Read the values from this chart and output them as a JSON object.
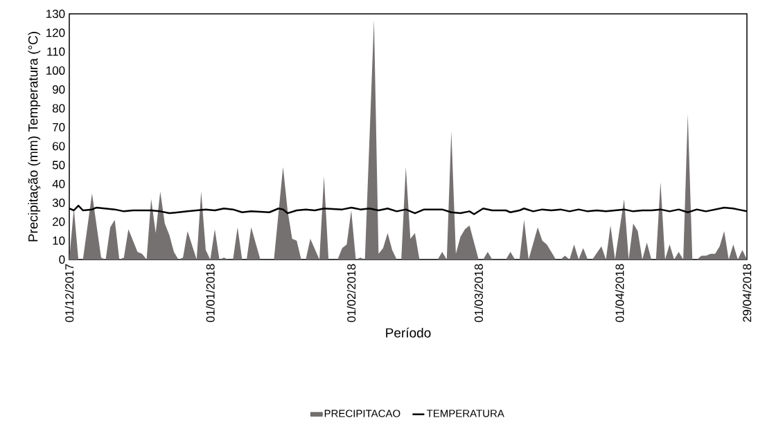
{
  "chart_data": {
    "type": "area",
    "xlabel": "Período",
    "ylabel": "Precipitação (mm) Temperatura (°C)",
    "xlim": [
      "2017-12-01",
      "2018-04-29"
    ],
    "xticks": [
      {
        "value": "2017-12-01",
        "label": "01/12/2017"
      },
      {
        "value": "2018-01-01",
        "label": "01/01/2018"
      },
      {
        "value": "2018-02-01",
        "label": "01/02/2018"
      },
      {
        "value": "2018-03-01",
        "label": "01/03/2018"
      },
      {
        "value": "2018-04-01",
        "label": "01/04/2018"
      },
      {
        "value": "2018-04-29",
        "label": "29/04/2018"
      }
    ],
    "ylim": [
      0,
      130
    ],
    "yticks": [
      0,
      10,
      20,
      30,
      40,
      50,
      60,
      70,
      80,
      90,
      100,
      110,
      120,
      130
    ],
    "legend": "bottom",
    "series": [
      {
        "name": "PRECIPITACAO",
        "color": "#767171",
        "x": [
          "2017-12-01",
          "2017-12-02",
          "2017-12-03",
          "2017-12-04",
          "2017-12-06",
          "2017-12-08",
          "2017-12-09",
          "2017-12-10",
          "2017-12-11",
          "2017-12-12",
          "2017-12-13",
          "2017-12-14",
          "2017-12-16",
          "2017-12-17",
          "2017-12-18",
          "2017-12-19",
          "2017-12-20",
          "2017-12-21",
          "2017-12-22",
          "2017-12-23",
          "2017-12-24",
          "2017-12-25",
          "2017-12-26",
          "2017-12-27",
          "2017-12-29",
          "2017-12-30",
          "2017-12-31",
          "2018-01-01",
          "2018-01-02",
          "2018-01-03",
          "2018-01-04",
          "2018-01-05",
          "2018-01-06",
          "2018-01-07",
          "2018-01-08",
          "2018-01-09",
          "2018-01-10",
          "2018-01-12",
          "2018-01-15",
          "2018-01-17",
          "2018-01-18",
          "2018-01-19",
          "2018-01-20",
          "2018-01-21",
          "2018-01-22",
          "2018-01-23",
          "2018-01-25",
          "2018-01-26",
          "2018-01-27",
          "2018-01-29",
          "2018-01-30",
          "2018-01-31",
          "2018-02-01",
          "2018-02-02",
          "2018-02-03",
          "2018-02-04",
          "2018-02-06",
          "2018-02-07",
          "2018-02-08",
          "2018-02-09",
          "2018-02-10",
          "2018-02-11",
          "2018-02-12",
          "2018-02-13",
          "2018-02-14",
          "2018-02-15",
          "2018-02-16",
          "2018-02-20",
          "2018-02-21",
          "2018-02-22",
          "2018-02-23",
          "2018-02-24",
          "2018-02-25",
          "2018-02-26",
          "2018-02-27",
          "2018-03-01",
          "2018-03-02",
          "2018-03-03",
          "2018-03-04",
          "2018-03-07",
          "2018-03-08",
          "2018-03-09",
          "2018-03-10",
          "2018-03-11",
          "2018-03-12",
          "2018-03-14",
          "2018-03-15",
          "2018-03-16",
          "2018-03-18",
          "2018-03-19",
          "2018-03-20",
          "2018-03-21",
          "2018-03-22",
          "2018-03-23",
          "2018-03-24",
          "2018-03-25",
          "2018-03-26",
          "2018-03-28",
          "2018-03-29",
          "2018-03-30",
          "2018-03-31",
          "2018-04-02",
          "2018-04-03",
          "2018-04-04",
          "2018-04-05",
          "2018-04-06",
          "2018-04-07",
          "2018-04-08",
          "2018-04-09",
          "2018-04-10",
          "2018-04-11",
          "2018-04-12",
          "2018-04-13",
          "2018-04-14",
          "2018-04-15",
          "2018-04-16",
          "2018-04-17",
          "2018-04-18",
          "2018-04-19",
          "2018-04-20",
          "2018-04-21",
          "2018-04-22",
          "2018-04-23",
          "2018-04-24",
          "2018-04-25",
          "2018-04-26",
          "2018-04-27",
          "2018-04-28",
          "2018-04-29"
        ],
        "values": [
          0,
          27,
          0,
          0,
          35,
          1,
          0,
          17,
          21,
          0,
          1,
          16,
          4,
          3,
          0,
          32,
          14,
          36,
          19,
          13,
          4,
          0,
          1,
          15,
          0,
          36,
          5,
          0,
          16,
          0,
          1,
          0,
          0,
          17,
          0,
          0,
          17,
          0,
          0,
          49,
          26,
          11,
          10,
          0,
          0,
          11,
          0,
          44,
          0,
          0,
          6,
          8,
          26,
          0,
          1,
          0,
          127,
          3,
          6,
          14,
          5,
          0,
          0,
          49,
          11,
          14,
          0,
          0,
          4,
          0,
          68,
          3,
          12,
          16,
          18,
          0,
          0,
          4,
          0,
          0,
          4,
          0,
          0,
          21,
          0,
          17,
          10,
          8,
          0,
          0,
          2,
          0,
          8,
          0,
          6,
          0,
          0,
          7,
          0,
          18,
          0,
          32,
          0,
          19,
          15,
          0,
          9,
          0,
          0,
          41,
          0,
          8,
          0,
          4,
          0,
          77,
          0,
          0,
          2,
          2,
          3,
          3,
          7,
          15,
          0,
          8,
          0,
          5,
          0
        ]
      },
      {
        "name": "TEMPERATURA",
        "type": "line",
        "color": "#000000",
        "x": [
          "2017-12-01",
          "2017-12-02",
          "2017-12-03",
          "2017-12-04",
          "2017-12-06",
          "2017-12-07",
          "2017-12-11",
          "2017-12-13",
          "2017-12-15",
          "2017-12-19",
          "2017-12-21",
          "2017-12-23",
          "2017-12-25",
          "2017-12-27",
          "2017-12-29",
          "2017-12-31",
          "2018-01-02",
          "2018-01-04",
          "2018-01-06",
          "2018-01-08",
          "2018-01-10",
          "2018-01-14",
          "2018-01-16",
          "2018-01-17",
          "2018-01-18",
          "2018-01-20",
          "2018-01-22",
          "2018-01-24",
          "2018-01-26",
          "2018-01-30",
          "2018-02-01",
          "2018-02-03",
          "2018-02-05",
          "2018-02-07",
          "2018-02-09",
          "2018-02-11",
          "2018-02-13",
          "2018-02-15",
          "2018-02-17",
          "2018-02-21",
          "2018-02-23",
          "2018-02-25",
          "2018-02-27",
          "2018-02-28",
          "2018-03-02",
          "2018-03-04",
          "2018-03-07",
          "2018-03-08",
          "2018-03-10",
          "2018-03-11",
          "2018-03-13",
          "2018-03-15",
          "2018-03-17",
          "2018-03-19",
          "2018-03-21",
          "2018-03-23",
          "2018-03-25",
          "2018-03-27",
          "2018-03-29",
          "2018-03-31",
          "2018-04-02",
          "2018-04-04",
          "2018-04-06",
          "2018-04-08",
          "2018-04-10",
          "2018-04-12",
          "2018-04-14",
          "2018-04-16",
          "2018-04-18",
          "2018-04-20",
          "2018-04-24",
          "2018-04-26",
          "2018-04-27",
          "2018-04-29"
        ],
        "values": [
          27,
          26,
          28.5,
          26,
          26.5,
          27.5,
          26.5,
          25.5,
          26,
          26,
          25.5,
          24.5,
          25,
          25.5,
          26,
          26.5,
          26,
          27,
          26.5,
          25,
          25.5,
          25,
          27,
          26.5,
          24.5,
          26,
          26.5,
          26,
          27,
          26.5,
          27.5,
          26.5,
          27,
          26,
          27,
          25.5,
          26.5,
          24.5,
          26.5,
          26.5,
          25,
          24.5,
          25.5,
          24,
          27,
          26,
          26,
          25,
          26,
          27,
          25.5,
          26.5,
          26,
          26.5,
          25.5,
          26.5,
          25.5,
          26,
          25.5,
          26,
          26.5,
          25.5,
          26,
          26,
          26.5,
          25.5,
          26.5,
          25,
          26.5,
          25.5,
          27.5,
          27,
          26.5,
          25.5
        ]
      }
    ]
  }
}
